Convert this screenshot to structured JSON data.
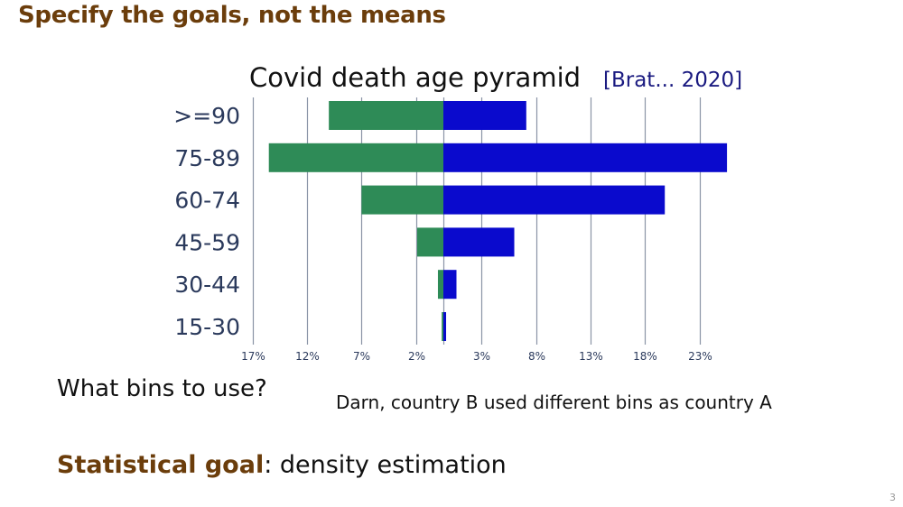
{
  "slide": {
    "title": "Specify the goals, not the means",
    "question": "What bins to use?",
    "note": "Darn, country B used different bins as country A",
    "goal_label": "Statistical goal",
    "goal_text": ": density estimation",
    "page_number": "3"
  },
  "chart_data": {
    "type": "bar",
    "subtype": "population-pyramid",
    "title": "Covid death age pyramid",
    "citation": "[Brat... 2020]",
    "categories": [
      ">=90",
      "75-89",
      "60-74",
      "45-59",
      "30-44",
      "15-30"
    ],
    "series": [
      {
        "name": "left (green)",
        "side": "left",
        "color": "#2e8b57",
        "values": [
          10.5,
          16,
          7.5,
          2.4,
          0.5,
          0.15
        ]
      },
      {
        "name": "right (blue)",
        "side": "right",
        "color": "#0a0acd",
        "values": [
          7.6,
          26,
          20.3,
          6.5,
          1.2,
          0.25
        ]
      }
    ],
    "x_tick_labels": [
      "17%",
      "12%",
      "7%",
      "2%",
      "3%",
      "8%",
      "13%",
      "18%",
      "23%"
    ],
    "x_tick_values": [
      -17,
      -12,
      -7,
      -2,
      3,
      8,
      13,
      18,
      23
    ],
    "xlim": [
      -17,
      27
    ],
    "grid": true,
    "colors": {
      "grid": "#8a94a6",
      "axis_label": "#2b3a5c",
      "citation": "#1a1a80"
    }
  }
}
